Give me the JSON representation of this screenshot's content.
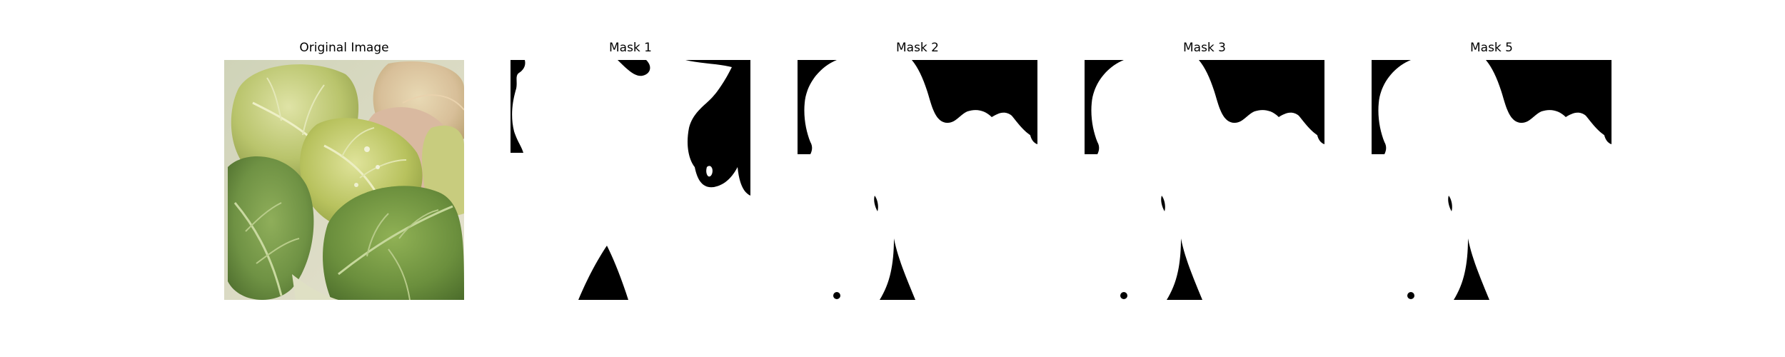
{
  "figure": {
    "panels": [
      {
        "title": "Original Image",
        "kind": "photo",
        "subject": "leaf-photo"
      },
      {
        "title": "Mask 1",
        "kind": "mask",
        "fg_color": "#ffffff",
        "bg_color": "#000000"
      },
      {
        "title": "Mask 2",
        "kind": "mask",
        "fg_color": "#ffffff",
        "bg_color": "#000000"
      },
      {
        "title": "Mask 3",
        "kind": "mask",
        "fg_color": "#ffffff",
        "bg_color": "#000000"
      },
      {
        "title": "Mask 5",
        "kind": "mask",
        "fg_color": "#ffffff",
        "bg_color": "#000000"
      }
    ]
  }
}
